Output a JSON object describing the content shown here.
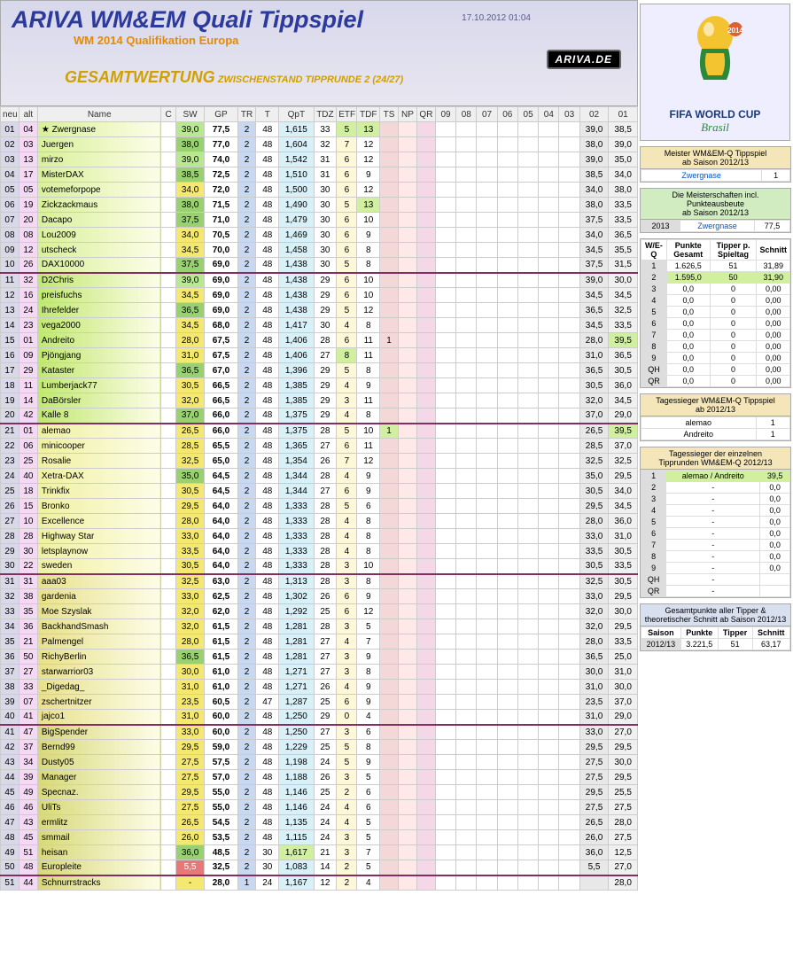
{
  "header": {
    "title": "ARIVA WM&EM Quali Tippspiel",
    "subtitle": "WM 2014 Qualifikation Europa",
    "timestamp": "17.10.2012 01:04",
    "ariva_badge": "ARIVA.DE",
    "gesamtwertung": "GESAMTWERTUNG",
    "gesamt_sub": "ZWISCHENSTAND TIPPRUNDE 2 (24/27)"
  },
  "columns": [
    "neu",
    "alt",
    "Name",
    "C",
    "SW",
    "GP",
    "TR",
    "T",
    "QpT",
    "TDZ",
    "ETF",
    "TDF",
    "TS",
    "NP",
    "QR",
    "09",
    "08",
    "07",
    "06",
    "05",
    "04",
    "03",
    "02",
    "01"
  ],
  "rows": [
    {
      "neu": "01",
      "alt": "04",
      "name": "Zwergnase",
      "star": true,
      "sw": "39,0",
      "swc": "hl-green",
      "gp": "77,5",
      "tr": "2",
      "t": "48",
      "qpt": "1,615",
      "tdz": "33",
      "etf": "5",
      "etfc": "hl-lime",
      "tdf": "13",
      "tdfc": "hl-lime",
      "c02": "39,0",
      "c01": "38,5",
      "block": 1,
      "first": true
    },
    {
      "neu": "02",
      "alt": "03",
      "name": "Juergen",
      "sw": "38,0",
      "swc": "sw-green",
      "gp": "77,0",
      "tr": "2",
      "t": "48",
      "qpt": "1,604",
      "tdz": "32",
      "etf": "7",
      "tdf": "12",
      "c02": "38,0",
      "c01": "39,0",
      "block": 1
    },
    {
      "neu": "03",
      "alt": "13",
      "name": "mirzo",
      "sw": "39,0",
      "swc": "hl-green",
      "gp": "74,0",
      "tr": "2",
      "t": "48",
      "qpt": "1,542",
      "tdz": "31",
      "etf": "6",
      "tdf": "12",
      "c02": "39,0",
      "c01": "35,0",
      "block": 1
    },
    {
      "neu": "04",
      "alt": "17",
      "name": "MisterDAX",
      "sw": "38,5",
      "swc": "sw-green",
      "gp": "72,5",
      "tr": "2",
      "t": "48",
      "qpt": "1,510",
      "tdz": "31",
      "etf": "6",
      "tdf": "9",
      "c02": "38,5",
      "c01": "34,0",
      "block": 1
    },
    {
      "neu": "05",
      "alt": "05",
      "name": "votemeforpope",
      "sw": "34,0",
      "swc": "sw-yellow",
      "gp": "72,0",
      "tr": "2",
      "t": "48",
      "qpt": "1,500",
      "tdz": "30",
      "etf": "6",
      "tdf": "12",
      "c02": "34,0",
      "c01": "38,0",
      "block": 1
    },
    {
      "neu": "06",
      "alt": "19",
      "name": "Zickzackmaus",
      "sw": "38,0",
      "swc": "sw-green",
      "gp": "71,5",
      "tr": "2",
      "t": "48",
      "qpt": "1,490",
      "tdz": "30",
      "etf": "5",
      "tdf": "13",
      "tdfc": "hl-lime",
      "c02": "38,0",
      "c01": "33,5",
      "block": 1
    },
    {
      "neu": "07",
      "alt": "20",
      "name": "Dacapo",
      "sw": "37,5",
      "swc": "sw-green",
      "gp": "71,0",
      "tr": "2",
      "t": "48",
      "qpt": "1,479",
      "tdz": "30",
      "etf": "6",
      "tdf": "10",
      "c02": "37,5",
      "c01": "33,5",
      "block": 1
    },
    {
      "neu": "08",
      "alt": "08",
      "name": "Lou2009",
      "sw": "34,0",
      "swc": "sw-yellow",
      "gp": "70,5",
      "tr": "2",
      "t": "48",
      "qpt": "1,469",
      "tdz": "30",
      "etf": "6",
      "tdf": "9",
      "c02": "34,0",
      "c01": "36,5",
      "block": 1
    },
    {
      "neu": "09",
      "alt": "12",
      "name": "utscheck",
      "sw": "34,5",
      "swc": "sw-yellow",
      "gp": "70,0",
      "tr": "2",
      "t": "48",
      "qpt": "1,458",
      "tdz": "30",
      "etf": "6",
      "tdf": "8",
      "c02": "34,5",
      "c01": "35,5",
      "block": 1
    },
    {
      "neu": "10",
      "alt": "26",
      "name": "DAX10000",
      "sw": "37,5",
      "swc": "sw-green",
      "gp": "69,0",
      "tr": "2",
      "t": "48",
      "qpt": "1,438",
      "tdz": "30",
      "etf": "5",
      "tdf": "8",
      "c02": "37,5",
      "c01": "31,5",
      "block": 1
    },
    {
      "neu": "11",
      "alt": "32",
      "name": "D2Chris",
      "sw": "39,0",
      "swc": "hl-green",
      "gp": "69,0",
      "tr": "2",
      "t": "48",
      "qpt": "1,438",
      "tdz": "29",
      "etf": "6",
      "tdf": "10",
      "c02": "39,0",
      "c01": "30,0",
      "block": 2,
      "sep": true
    },
    {
      "neu": "12",
      "alt": "16",
      "name": "preisfuchs",
      "sw": "34,5",
      "swc": "sw-yellow",
      "gp": "69,0",
      "tr": "2",
      "t": "48",
      "qpt": "1,438",
      "tdz": "29",
      "etf": "6",
      "tdf": "10",
      "c02": "34,5",
      "c01": "34,5",
      "block": 2
    },
    {
      "neu": "13",
      "alt": "24",
      "name": "Ihrefelder",
      "sw": "36,5",
      "swc": "sw-green",
      "gp": "69,0",
      "tr": "2",
      "t": "48",
      "qpt": "1,438",
      "tdz": "29",
      "etf": "5",
      "tdf": "12",
      "c02": "36,5",
      "c01": "32,5",
      "block": 2
    },
    {
      "neu": "14",
      "alt": "23",
      "name": "vega2000",
      "sw": "34,5",
      "swc": "sw-yellow",
      "gp": "68,0",
      "tr": "2",
      "t": "48",
      "qpt": "1,417",
      "tdz": "30",
      "etf": "4",
      "tdf": "8",
      "c02": "34,5",
      "c01": "33,5",
      "block": 2
    },
    {
      "neu": "15",
      "alt": "01",
      "name": "Andreito",
      "sw": "28,0",
      "swc": "sw-yellow",
      "gp": "67,5",
      "tr": "2",
      "t": "48",
      "qpt": "1,406",
      "tdz": "28",
      "etf": "6",
      "tdf": "11",
      "ts": "1",
      "c02": "28,0",
      "c01": "39,5",
      "c01c": "hl-lime",
      "block": 2
    },
    {
      "neu": "16",
      "alt": "09",
      "name": "Pjöngjang",
      "sw": "31,0",
      "swc": "sw-yellow",
      "gp": "67,5",
      "tr": "2",
      "t": "48",
      "qpt": "1,406",
      "tdz": "27",
      "etf": "8",
      "etfc": "hl-lime",
      "tdf": "11",
      "c02": "31,0",
      "c01": "36,5",
      "block": 2
    },
    {
      "neu": "17",
      "alt": "29",
      "name": "Kataster",
      "sw": "36,5",
      "swc": "sw-green",
      "gp": "67,0",
      "tr": "2",
      "t": "48",
      "qpt": "1,396",
      "tdz": "29",
      "etf": "5",
      "tdf": "8",
      "c02": "36,5",
      "c01": "30,5",
      "block": 2
    },
    {
      "neu": "18",
      "alt": "11",
      "name": "Lumberjack77",
      "sw": "30,5",
      "swc": "sw-yellow",
      "gp": "66,5",
      "tr": "2",
      "t": "48",
      "qpt": "1,385",
      "tdz": "29",
      "etf": "4",
      "tdf": "9",
      "c02": "30,5",
      "c01": "36,0",
      "block": 2
    },
    {
      "neu": "19",
      "alt": "14",
      "name": "DaBörsler",
      "sw": "32,0",
      "swc": "sw-yellow",
      "gp": "66,5",
      "tr": "2",
      "t": "48",
      "qpt": "1,385",
      "tdz": "29",
      "etf": "3",
      "tdf": "11",
      "c02": "32,0",
      "c01": "34,5",
      "block": 2
    },
    {
      "neu": "20",
      "alt": "42",
      "name": "Kalle 8",
      "sw": "37,0",
      "swc": "sw-green",
      "gp": "66,0",
      "tr": "2",
      "t": "48",
      "qpt": "1,375",
      "tdz": "29",
      "etf": "4",
      "tdf": "8",
      "c02": "37,0",
      "c01": "29,0",
      "block": 2
    },
    {
      "neu": "21",
      "alt": "01",
      "name": "alemao",
      "sw": "26,5",
      "swc": "sw-yellow",
      "gp": "66,0",
      "tr": "2",
      "t": "48",
      "qpt": "1,375",
      "tdz": "28",
      "etf": "5",
      "tdf": "10",
      "ts": "1",
      "tsc": "hl-lime",
      "c02": "26,5",
      "c01": "39,5",
      "c01c": "hl-lime",
      "block": 3,
      "sep": true
    },
    {
      "neu": "22",
      "alt": "06",
      "name": "minicooper",
      "sw": "28,5",
      "swc": "sw-yellow",
      "gp": "65,5",
      "tr": "2",
      "t": "48",
      "qpt": "1,365",
      "tdz": "27",
      "etf": "6",
      "tdf": "11",
      "c02": "28,5",
      "c01": "37,0",
      "block": 3
    },
    {
      "neu": "23",
      "alt": "25",
      "name": "Rosalie",
      "sw": "32,5",
      "swc": "sw-yellow",
      "gp": "65,0",
      "tr": "2",
      "t": "48",
      "qpt": "1,354",
      "tdz": "26",
      "etf": "7",
      "tdf": "12",
      "c02": "32,5",
      "c01": "32,5",
      "block": 3
    },
    {
      "neu": "24",
      "alt": "40",
      "name": "Xetra-DAX",
      "sw": "35,0",
      "swc": "sw-green",
      "gp": "64,5",
      "tr": "2",
      "t": "48",
      "qpt": "1,344",
      "tdz": "28",
      "etf": "4",
      "tdf": "9",
      "c02": "35,0",
      "c01": "29,5",
      "block": 3
    },
    {
      "neu": "25",
      "alt": "18",
      "name": "Trinkfix",
      "sw": "30,5",
      "swc": "sw-yellow",
      "gp": "64,5",
      "tr": "2",
      "t": "48",
      "qpt": "1,344",
      "tdz": "27",
      "etf": "6",
      "tdf": "9",
      "c02": "30,5",
      "c01": "34,0",
      "block": 3
    },
    {
      "neu": "26",
      "alt": "15",
      "name": "Bronko",
      "sw": "29,5",
      "swc": "sw-yellow",
      "gp": "64,0",
      "tr": "2",
      "t": "48",
      "qpt": "1,333",
      "tdz": "28",
      "etf": "5",
      "tdf": "6",
      "c02": "29,5",
      "c01": "34,5",
      "block": 3
    },
    {
      "neu": "27",
      "alt": "10",
      "name": "Excellence",
      "sw": "28,0",
      "swc": "sw-yellow",
      "gp": "64,0",
      "tr": "2",
      "t": "48",
      "qpt": "1,333",
      "tdz": "28",
      "etf": "4",
      "tdf": "8",
      "c02": "28,0",
      "c01": "36,0",
      "block": 3
    },
    {
      "neu": "28",
      "alt": "28",
      "name": "Highway Star",
      "sw": "33,0",
      "swc": "sw-yellow",
      "gp": "64,0",
      "tr": "2",
      "t": "48",
      "qpt": "1,333",
      "tdz": "28",
      "etf": "4",
      "tdf": "8",
      "c02": "33,0",
      "c01": "31,0",
      "block": 3
    },
    {
      "neu": "29",
      "alt": "30",
      "name": "letsplaynow",
      "sw": "33,5",
      "swc": "sw-yellow",
      "gp": "64,0",
      "tr": "2",
      "t": "48",
      "qpt": "1,333",
      "tdz": "28",
      "etf": "4",
      "tdf": "8",
      "c02": "33,5",
      "c01": "30,5",
      "block": 3
    },
    {
      "neu": "30",
      "alt": "22",
      "name": "sweden",
      "sw": "30,5",
      "swc": "sw-yellow",
      "gp": "64,0",
      "tr": "2",
      "t": "48",
      "qpt": "1,333",
      "tdz": "28",
      "etf": "3",
      "tdf": "10",
      "c02": "30,5",
      "c01": "33,5",
      "block": 3
    },
    {
      "neu": "31",
      "alt": "31",
      "name": "aaa03",
      "sw": "32,5",
      "swc": "sw-yellow",
      "gp": "63,0",
      "tr": "2",
      "t": "48",
      "qpt": "1,313",
      "tdz": "28",
      "etf": "3",
      "tdf": "8",
      "c02": "32,5",
      "c01": "30,5",
      "block": 4,
      "sep": true
    },
    {
      "neu": "32",
      "alt": "38",
      "name": "gardenia",
      "sw": "33,0",
      "swc": "sw-yellow",
      "gp": "62,5",
      "tr": "2",
      "t": "48",
      "qpt": "1,302",
      "tdz": "26",
      "etf": "6",
      "tdf": "9",
      "c02": "33,0",
      "c01": "29,5",
      "block": 4
    },
    {
      "neu": "33",
      "alt": "35",
      "name": "Moe Szyslak",
      "sw": "32,0",
      "swc": "sw-yellow",
      "gp": "62,0",
      "tr": "2",
      "t": "48",
      "qpt": "1,292",
      "tdz": "25",
      "etf": "6",
      "tdf": "12",
      "c02": "32,0",
      "c01": "30,0",
      "block": 4
    },
    {
      "neu": "34",
      "alt": "36",
      "name": "BackhandSmash",
      "sw": "32,0",
      "swc": "sw-yellow",
      "gp": "61,5",
      "tr": "2",
      "t": "48",
      "qpt": "1,281",
      "tdz": "28",
      "etf": "3",
      "tdf": "5",
      "c02": "32,0",
      "c01": "29,5",
      "block": 4
    },
    {
      "neu": "35",
      "alt": "21",
      "name": "Palmengel",
      "sw": "28,0",
      "swc": "sw-yellow",
      "gp": "61,5",
      "tr": "2",
      "t": "48",
      "qpt": "1,281",
      "tdz": "27",
      "etf": "4",
      "tdf": "7",
      "c02": "28,0",
      "c01": "33,5",
      "block": 4
    },
    {
      "neu": "36",
      "alt": "50",
      "name": "RichyBerlin",
      "sw": "36,5",
      "swc": "sw-green",
      "gp": "61,5",
      "tr": "2",
      "t": "48",
      "qpt": "1,281",
      "tdz": "27",
      "etf": "3",
      "tdf": "9",
      "c02": "36,5",
      "c01": "25,0",
      "block": 4
    },
    {
      "neu": "37",
      "alt": "27",
      "name": "starwarrior03",
      "sw": "30,0",
      "swc": "sw-yellow",
      "gp": "61,0",
      "tr": "2",
      "t": "48",
      "qpt": "1,271",
      "tdz": "27",
      "etf": "3",
      "tdf": "8",
      "c02": "30,0",
      "c01": "31,0",
      "block": 4
    },
    {
      "neu": "38",
      "alt": "33",
      "name": "_Digedag_",
      "sw": "31,0",
      "swc": "sw-yellow",
      "gp": "61,0",
      "tr": "2",
      "t": "48",
      "qpt": "1,271",
      "tdz": "26",
      "etf": "4",
      "tdf": "9",
      "c02": "31,0",
      "c01": "30,0",
      "block": 4
    },
    {
      "neu": "39",
      "alt": "07",
      "name": "zschertnitzer",
      "sw": "23,5",
      "swc": "sw-yellow",
      "gp": "60,5",
      "tr": "2",
      "t": "47",
      "qpt": "1,287",
      "tdz": "25",
      "etf": "6",
      "tdf": "9",
      "c02": "23,5",
      "c01": "37,0",
      "block": 4
    },
    {
      "neu": "40",
      "alt": "41",
      "name": "jajco1",
      "sw": "31,0",
      "swc": "sw-yellow",
      "gp": "60,0",
      "tr": "2",
      "t": "48",
      "qpt": "1,250",
      "tdz": "29",
      "etf": "0",
      "tdf": "4",
      "c02": "31,0",
      "c01": "29,0",
      "block": 4
    },
    {
      "neu": "41",
      "alt": "47",
      "name": "BigSpender",
      "sw": "33,0",
      "swc": "sw-yellow",
      "gp": "60,0",
      "tr": "2",
      "t": "48",
      "qpt": "1,250",
      "tdz": "27",
      "etf": "3",
      "tdf": "6",
      "c02": "33,0",
      "c01": "27,0",
      "block": 5,
      "sep": true
    },
    {
      "neu": "42",
      "alt": "37",
      "name": "Bernd99",
      "sw": "29,5",
      "swc": "sw-yellow",
      "gp": "59,0",
      "tr": "2",
      "t": "48",
      "qpt": "1,229",
      "tdz": "25",
      "etf": "5",
      "tdf": "8",
      "c02": "29,5",
      "c01": "29,5",
      "block": 5
    },
    {
      "neu": "43",
      "alt": "34",
      "name": "Dusty05",
      "sw": "27,5",
      "swc": "sw-yellow",
      "gp": "57,5",
      "tr": "2",
      "t": "48",
      "qpt": "1,198",
      "tdz": "24",
      "etf": "5",
      "tdf": "9",
      "c02": "27,5",
      "c01": "30,0",
      "block": 5
    },
    {
      "neu": "44",
      "alt": "39",
      "name": "Manager",
      "sw": "27,5",
      "swc": "sw-yellow",
      "gp": "57,0",
      "tr": "2",
      "t": "48",
      "qpt": "1,188",
      "tdz": "26",
      "etf": "3",
      "tdf": "5",
      "c02": "27,5",
      "c01": "29,5",
      "block": 5
    },
    {
      "neu": "45",
      "alt": "49",
      "name": "Specnaz.",
      "sw": "29,5",
      "swc": "sw-yellow",
      "gp": "55,0",
      "tr": "2",
      "t": "48",
      "qpt": "1,146",
      "tdz": "25",
      "etf": "2",
      "tdf": "6",
      "c02": "29,5",
      "c01": "25,5",
      "block": 5
    },
    {
      "neu": "46",
      "alt": "46",
      "name": "UliTs",
      "sw": "27,5",
      "swc": "sw-yellow",
      "gp": "55,0",
      "tr": "2",
      "t": "48",
      "qpt": "1,146",
      "tdz": "24",
      "etf": "4",
      "tdf": "6",
      "c02": "27,5",
      "c01": "27,5",
      "block": 5
    },
    {
      "neu": "47",
      "alt": "43",
      "name": "ermlitz",
      "sw": "26,5",
      "swc": "sw-yellow",
      "gp": "54,5",
      "tr": "2",
      "t": "48",
      "qpt": "1,135",
      "tdz": "24",
      "etf": "4",
      "tdf": "5",
      "c02": "26,5",
      "c01": "28,0",
      "block": 5
    },
    {
      "neu": "48",
      "alt": "45",
      "name": "smmail",
      "sw": "26,0",
      "swc": "sw-yellow",
      "gp": "53,5",
      "tr": "2",
      "t": "48",
      "qpt": "1,115",
      "tdz": "24",
      "etf": "3",
      "tdf": "5",
      "c02": "26,0",
      "c01": "27,5",
      "block": 5
    },
    {
      "neu": "49",
      "alt": "51",
      "name": "heisan",
      "sw": "36,0",
      "swc": "sw-green",
      "gp": "48,5",
      "tr": "2",
      "t": "30",
      "qpt": "1,617",
      "qptc": "hl-lime",
      "tdz": "21",
      "etf": "3",
      "tdf": "7",
      "c02": "36,0",
      "c01": "12,5",
      "block": 5
    },
    {
      "neu": "50",
      "alt": "48",
      "name": "Europleite",
      "sw": "5,5",
      "swc": "sw-red",
      "gp": "32,5",
      "tr": "2",
      "t": "30",
      "qpt": "1,083",
      "tdz": "14",
      "etf": "2",
      "tdf": "5",
      "c02": "5,5",
      "c01": "27,0",
      "block": 5
    },
    {
      "neu": "51",
      "alt": "44",
      "name": "Schnurrstracks",
      "sw": "-",
      "swc": "sw-yellow",
      "gp": "28,0",
      "tr": "1",
      "t": "24",
      "qpt": "1,167",
      "tdz": "12",
      "etf": "2",
      "tdf": "4",
      "c02": "",
      "c01": "28,0",
      "block": 5,
      "sep": true
    }
  ],
  "side": {
    "logo": {
      "fifa": "FIFA WORLD CUP",
      "brasil": "Brasil"
    },
    "box1": {
      "head1": "Meister WM&EM-Q Tippspiel",
      "head2": "ab Saison 2012/13",
      "row": [
        "Zwergnase",
        "1"
      ]
    },
    "box2": {
      "head1": "Die Meisterschaften incl. Punkteausbeute",
      "head2": "ab Saison 2012/13",
      "row": [
        "2013",
        "Zwergnase",
        "77,5"
      ]
    },
    "box3": {
      "head_cols": [
        "W/E-Q",
        "Punkte Gesamt",
        "Tipper p. Spieltag",
        "Schnitt"
      ],
      "rows": [
        [
          "1",
          "1.626,5",
          "51",
          "31,89"
        ],
        [
          "2",
          "1.595,0",
          "50",
          "31,90"
        ],
        [
          "3",
          "0,0",
          "0",
          "0,00"
        ],
        [
          "4",
          "0,0",
          "0",
          "0,00"
        ],
        [
          "5",
          "0,0",
          "0",
          "0,00"
        ],
        [
          "6",
          "0,0",
          "0",
          "0,00"
        ],
        [
          "7",
          "0,0",
          "0",
          "0,00"
        ],
        [
          "8",
          "0,0",
          "0",
          "0,00"
        ],
        [
          "9",
          "0,0",
          "0",
          "0,00"
        ],
        [
          "QH",
          "0,0",
          "0",
          "0,00"
        ],
        [
          "QR",
          "0,0",
          "0",
          "0,00"
        ]
      ]
    },
    "box4": {
      "head1": "Tagessieger WM&EM-Q Tippspiel",
      "head2": "ab 2012/13",
      "rows": [
        [
          "alemao",
          "1"
        ],
        [
          "Andreito",
          "1"
        ]
      ]
    },
    "box5": {
      "head1": "Tagessieger der einzelnen",
      "head2": "Tipprunden WM&EM-Q 2012/13",
      "rows": [
        [
          "1",
          "alemao / Andreito",
          "39,5"
        ],
        [
          "2",
          "-",
          "0,0"
        ],
        [
          "3",
          "-",
          "0,0"
        ],
        [
          "4",
          "-",
          "0,0"
        ],
        [
          "5",
          "-",
          "0,0"
        ],
        [
          "6",
          "-",
          "0,0"
        ],
        [
          "7",
          "-",
          "0,0"
        ],
        [
          "8",
          "-",
          "0,0"
        ],
        [
          "9",
          "-",
          "0,0"
        ],
        [
          "QH",
          "-",
          ""
        ],
        [
          "QR",
          "-",
          ""
        ]
      ]
    },
    "box6": {
      "head1": "Gesamtpunkte aller Tipper &",
      "head2": "theoretischer Schnitt ab Saison 2012/13",
      "cols": [
        "Saison",
        "Punkte",
        "Tipper",
        "Schnitt"
      ],
      "row": [
        "2012/13",
        "3.221,5",
        "51",
        "63,17"
      ]
    }
  }
}
